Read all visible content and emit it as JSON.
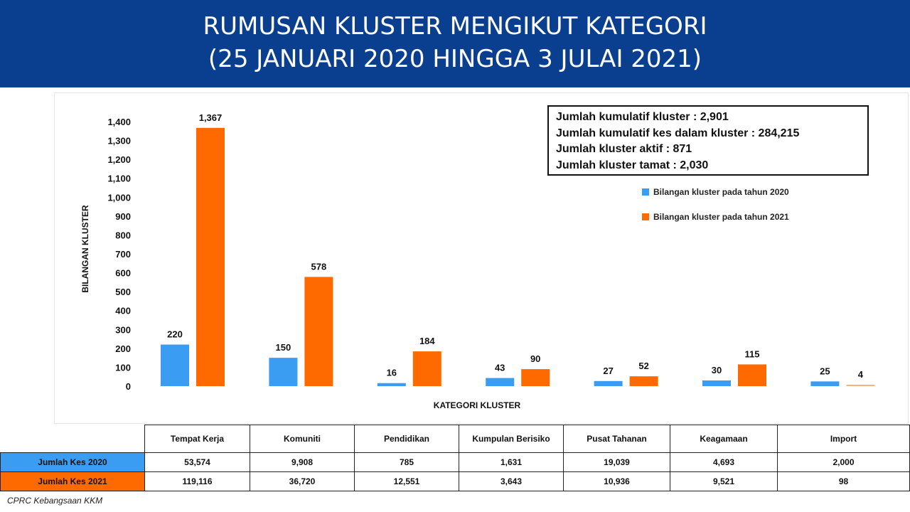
{
  "header": {
    "title_line1": "RUMUSAN KLUSTER MENGIKUT KATEGORI",
    "title_line2": "(25 JANUARI 2020 HINGGA 3 JULAI 2021)"
  },
  "summary": {
    "line1": "Jumlah kumulatif kluster : 2,901",
    "line2": "Jumlah kumulatif kes dalam kluster : 284,215",
    "line3": "Jumlah kluster aktif : 871",
    "line4": "Jumlah kluster tamat : 2,030"
  },
  "colors": {
    "blue": "#3a9df2",
    "orange": "#ff6a00",
    "header": "#0a3f8f"
  },
  "chart_data": {
    "type": "bar",
    "title": "RUMUSAN KLUSTER MENGIKUT KATEGORI",
    "xlabel": "KATEGORI KLUSTER",
    "ylabel": "BILANGAN KLUSTER",
    "ylim": [
      0,
      1400
    ],
    "yticks": [
      "1,400",
      "1,300",
      "1,200",
      "1,100",
      "1,000",
      "900",
      "800",
      "700",
      "600",
      "500",
      "400",
      "300",
      "200",
      "100",
      "0"
    ],
    "categories": [
      "Tempat Kerja",
      "Komuniti",
      "Pendidikan",
      "Kumpulan Berisiko",
      "Pusat Tahanan",
      "Keagamaan",
      "Import"
    ],
    "series": [
      {
        "name": "Bilangan kluster pada tahun 2020",
        "color": "#3a9df2",
        "values": [
          220,
          150,
          16,
          43,
          27,
          30,
          25
        ],
        "labels": [
          "220",
          "150",
          "16",
          "43",
          "27",
          "30",
          "25"
        ]
      },
      {
        "name": "Bilangan kluster pada tahun 2021",
        "color": "#ff6a00",
        "values": [
          1367,
          578,
          184,
          90,
          52,
          115,
          4
        ],
        "labels": [
          "1,367",
          "578",
          "184",
          "90",
          "52",
          "115",
          "4"
        ]
      }
    ],
    "legend_position": "top-right",
    "grid": false
  },
  "table": {
    "headers": [
      "Tempat Kerja",
      "Komuniti",
      "Pendidikan",
      "Kumpulan Berisiko",
      "Pusat Tahanan",
      "Keagamaan",
      "Import"
    ],
    "rows": [
      {
        "label": "Jumlah Kes 2020",
        "values": [
          "53,574",
          "9,908",
          "785",
          "1,631",
          "19,039",
          "4,693",
          "2,000"
        ]
      },
      {
        "label": "Jumlah Kes 2021",
        "values": [
          "119,116",
          "36,720",
          "12,551",
          "3,643",
          "10,936",
          "9,521",
          "98"
        ]
      }
    ]
  },
  "footer": {
    "source": "CPRC Kebangsaan KKM"
  }
}
